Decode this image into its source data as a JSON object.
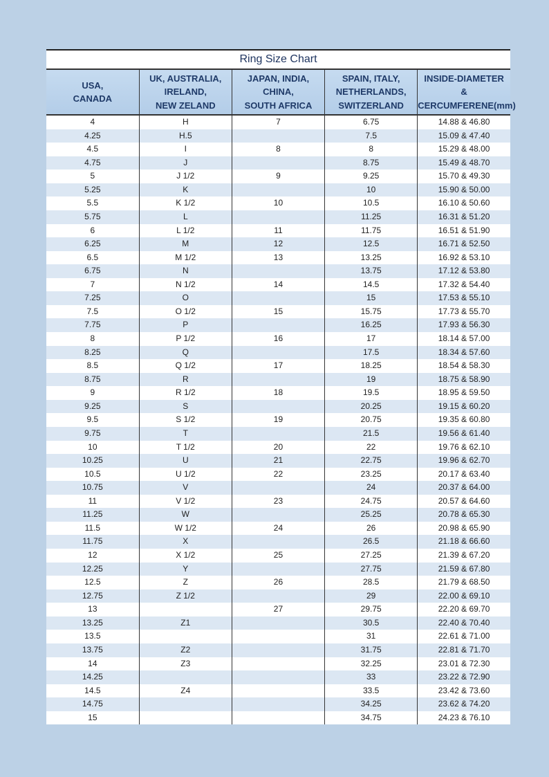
{
  "title": "Ring Size Chart",
  "columns": [
    [
      "USA,",
      "CANADA"
    ],
    [
      "UK, AUSTRALIA,",
      "IRELAND,",
      "NEW ZELAND"
    ],
    [
      "JAPAN, INDIA,",
      "CHINA,",
      "SOUTH AFRICA"
    ],
    [
      "SPAIN, ITALY,",
      "NETHERLANDS,",
      "SWITZERLAND"
    ],
    [
      "INSIDE-DIAMETER",
      "&",
      "CERCUMFERENE(mm)"
    ]
  ],
  "rows": [
    [
      "4",
      "H",
      "7",
      "6.75",
      "14.88 & 46.80"
    ],
    [
      "4.25",
      "H.5",
      "",
      "7.5",
      "15.09 & 47.40"
    ],
    [
      "4.5",
      "I",
      "8",
      "8",
      "15.29 & 48.00"
    ],
    [
      "4.75",
      "J",
      "",
      "8.75",
      "15.49 & 48.70"
    ],
    [
      "5",
      "J 1/2",
      "9",
      "9.25",
      "15.70 & 49.30"
    ],
    [
      "5.25",
      "K",
      "",
      "10",
      "15.90  & 50.00"
    ],
    [
      "5.5",
      "K 1/2",
      "10",
      "10.5",
      "16.10 & 50.60"
    ],
    [
      "5.75",
      "L",
      "",
      "11.25",
      "16.31 & 51.20"
    ],
    [
      "6",
      "L 1/2",
      "11",
      "11.75",
      "16.51 & 51.90"
    ],
    [
      "6.25",
      "M",
      "12",
      "12.5",
      "16.71 & 52.50"
    ],
    [
      "6.5",
      "M 1/2",
      "13",
      "13.25",
      "16.92 & 53.10"
    ],
    [
      "6.75",
      "N",
      "",
      "13.75",
      "17.12 & 53.80"
    ],
    [
      "7",
      "N 1/2",
      "14",
      "14.5",
      "17.32 & 54.40"
    ],
    [
      "7.25",
      "O",
      "",
      "15",
      "17.53 & 55.10"
    ],
    [
      "7.5",
      "O 1/2",
      "15",
      "15.75",
      "17.73 & 55.70"
    ],
    [
      "7.75",
      "P",
      "",
      "16.25",
      "17.93 & 56.30"
    ],
    [
      "8",
      "P 1/2",
      "16",
      "17",
      "18.14 & 57.00"
    ],
    [
      "8.25",
      "Q",
      "",
      "17.5",
      "18.34 & 57.60"
    ],
    [
      "8.5",
      "Q 1/2",
      "17",
      "18.25",
      "18.54 & 58.30"
    ],
    [
      "8.75",
      "R",
      "",
      "19",
      "18.75 & 58.90"
    ],
    [
      "9",
      "R 1/2",
      "18",
      "19.5",
      "18.95 & 59.50"
    ],
    [
      "9.25",
      "S",
      "",
      "20.25",
      "19.15 & 60.20"
    ],
    [
      "9.5",
      "S 1/2",
      "19",
      "20.75",
      "19.35 & 60.80"
    ],
    [
      "9.75",
      "T",
      "",
      "21.5",
      "19.56 & 61.40"
    ],
    [
      "10",
      "T 1/2",
      "20",
      "22",
      "19.76 & 62.10"
    ],
    [
      "10.25",
      "U",
      "21",
      "22.75",
      "19.96 & 62.70"
    ],
    [
      "10.5",
      "U 1/2",
      "22",
      "23.25",
      "20.17 & 63.40"
    ],
    [
      "10.75",
      "V",
      "",
      "24",
      "20.37 & 64.00"
    ],
    [
      "11",
      "V 1/2",
      "23",
      "24.75",
      "20.57 & 64.60"
    ],
    [
      "11.25",
      "W",
      "",
      "25.25",
      "20.78 & 65.30"
    ],
    [
      "11.5",
      "W 1/2",
      "24",
      "26",
      "20.98 & 65.90"
    ],
    [
      "11.75",
      "X",
      "",
      "26.5",
      "21.18 & 66.60"
    ],
    [
      "12",
      "X 1/2",
      "25",
      "27.25",
      "21.39 & 67.20"
    ],
    [
      "12.25",
      "Y",
      "",
      "27.75",
      "21.59 & 67.80"
    ],
    [
      "12.5",
      "Z",
      "26",
      "28.5",
      "21.79 & 68.50"
    ],
    [
      "12.75",
      "Z 1/2",
      "",
      "29",
      "22.00 & 69.10"
    ],
    [
      "13",
      "",
      "27",
      "29.75",
      "22.20 & 69.70"
    ],
    [
      "13.25",
      "Z1",
      "",
      "30.5",
      "22.40 & 70.40"
    ],
    [
      "13.5",
      "",
      "",
      "31",
      "22.61 & 71.00"
    ],
    [
      "13.75",
      "Z2",
      "",
      "31.75",
      "22.81 & 71.70"
    ],
    [
      "14",
      "Z3",
      "",
      "32.25",
      "23.01 & 72.30"
    ],
    [
      "14.25",
      "",
      "",
      "33",
      "23.22 & 72.90"
    ],
    [
      "14.5",
      "Z4",
      "",
      "33.5",
      "23.42 & 73.60"
    ],
    [
      "14.75",
      "",
      "",
      "34.25",
      "23.62 & 74.20"
    ],
    [
      "15",
      "",
      "",
      "34.75",
      "24.23 & 76.10"
    ]
  ]
}
